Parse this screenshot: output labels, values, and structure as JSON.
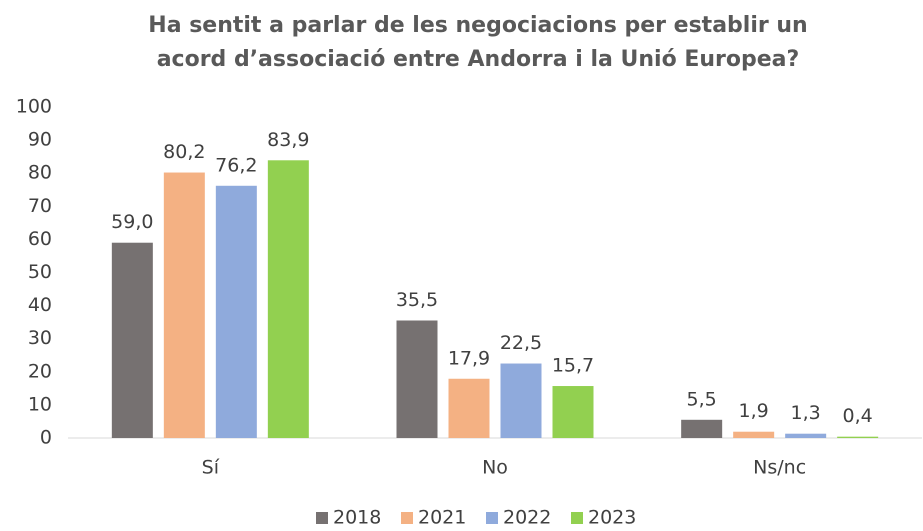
{
  "chart_data": {
    "type": "bar",
    "title": [
      "Ha sentit a parlar de les negociacions per establir un",
      "acord d’associació entre Andorra i la Unió Europea?"
    ],
    "categories": [
      "Sí",
      "No",
      "Ns/nc"
    ],
    "series": [
      {
        "name": "2018",
        "color": "#767171",
        "values": [
          59.0,
          35.5,
          5.5
        ],
        "value_labels": [
          "59,0",
          "35,5",
          "5,5"
        ]
      },
      {
        "name": "2021",
        "color": "#f4b183",
        "values": [
          80.2,
          17.9,
          1.9
        ],
        "value_labels": [
          "80,2",
          "17,9",
          "1,9"
        ]
      },
      {
        "name": "2022",
        "color": "#8faadc",
        "values": [
          76.2,
          22.5,
          1.3
        ],
        "value_labels": [
          "76,2",
          "22,5",
          "1,3"
        ]
      },
      {
        "name": "2023",
        "color": "#92d050",
        "values": [
          83.9,
          15.7,
          0.4
        ],
        "value_labels": [
          "83,9",
          "15,7",
          "0,4"
        ]
      }
    ],
    "ylim": [
      0,
      100
    ],
    "yticks": [
      0,
      10,
      20,
      30,
      40,
      50,
      60,
      70,
      80,
      90,
      100
    ],
    "grid": false,
    "legend": "bottom"
  }
}
